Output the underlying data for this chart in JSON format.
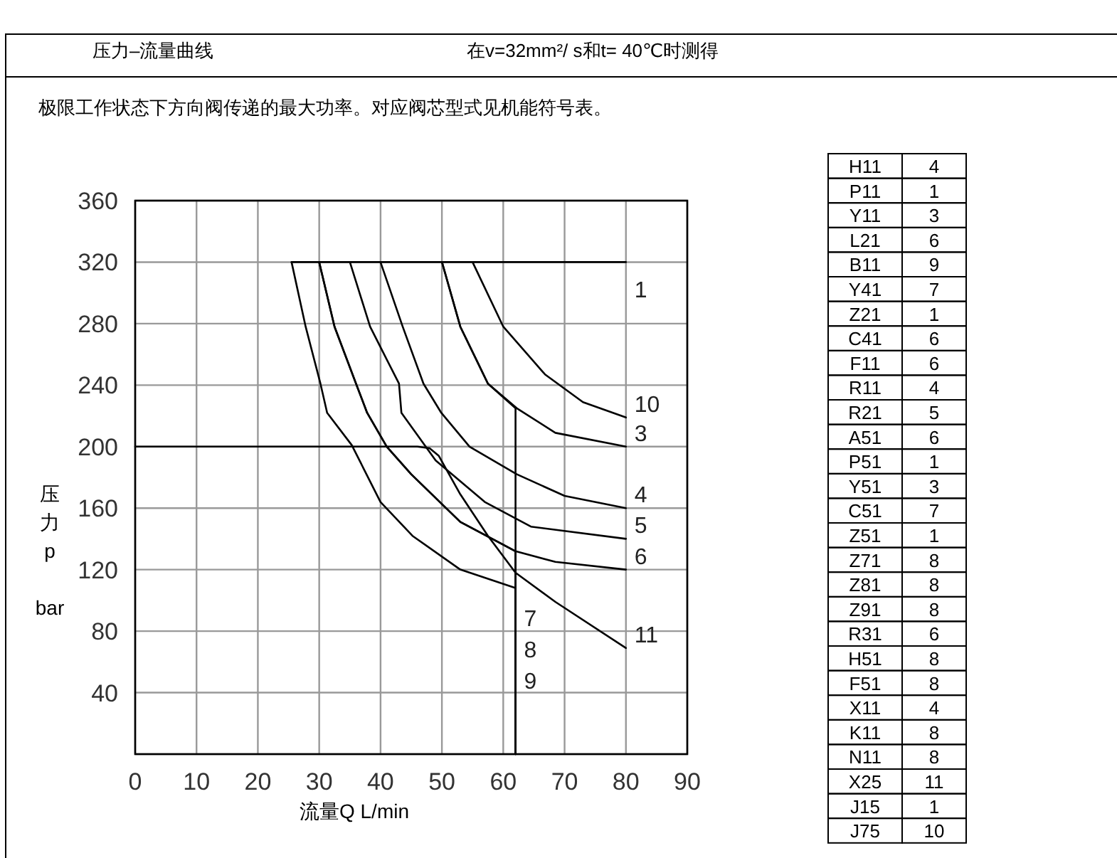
{
  "chart_data": [
    {
      "type": "line",
      "title": "压力–流量曲线",
      "subtitle": "在v=32mm²/ s和t= 40℃时测得",
      "annotations": [
        "极限工作状态下方向阀传递的最大功率。对应阀芯型式见机能符号表。"
      ],
      "xlabel": "流量Q  L/min",
      "ylabel": "压力\np\n\nbar",
      "xlim": [
        0,
        90
      ],
      "xticks": [
        0,
        10,
        20,
        30,
        40,
        50,
        60,
        70,
        80,
        90
      ],
      "ylim": [
        0,
        360
      ],
      "yticks": [
        {
          "value": 0,
          "label": null
        },
        40,
        80,
        120,
        160,
        200,
        240,
        280,
        320,
        360
      ],
      "grid": true,
      "marker": "none",
      "line_style": "solid",
      "series": [
        {
          "name": "1",
          "color": "#000000",
          "x": [
            25.5,
            80
          ],
          "values": [
            320,
            320
          ]
        },
        {
          "name": "3",
          "color": "#000000",
          "x": [
            50,
            53,
            57.5,
            62.2,
            68.5,
            80
          ],
          "values": [
            320,
            278,
            241,
            225,
            209,
            200
          ]
        },
        {
          "name": "4",
          "color": "#000000",
          "x": [
            40,
            43.6,
            47,
            49.9,
            54.5,
            62.2,
            70,
            80
          ],
          "values": [
            320,
            278,
            241,
            222,
            200,
            182,
            168,
            160
          ]
        },
        {
          "name": "5",
          "color": "#000000",
          "x": [
            35,
            38.3,
            43,
            43.4,
            49,
            57,
            64.5,
            80
          ],
          "values": [
            320,
            278,
            241,
            222,
            191,
            164,
            148,
            140
          ]
        },
        {
          "name": "6",
          "color": "#000000",
          "x": [
            30,
            32.5,
            36,
            37.8,
            41,
            45,
            53,
            62,
            68.5,
            80
          ],
          "values": [
            320,
            278,
            241,
            222,
            200,
            182,
            151,
            132,
            125,
            120
          ]
        },
        {
          "name": "7",
          "color": "#000000",
          "x": [
            30,
            32.5,
            36,
            37.8,
            41,
            45,
            53,
            62,
            62
          ],
          "values": [
            320,
            278,
            241,
            222,
            200,
            182,
            151,
            132,
            0
          ]
        },
        {
          "name": "8",
          "color": "#000000",
          "x": [
            25.5,
            27.8,
            30.2,
            31.3,
            35.3,
            40,
            45.2,
            53,
            62,
            62
          ],
          "values": [
            320,
            278,
            241,
            222,
            201,
            164,
            142,
            120,
            108,
            0
          ]
        },
        {
          "name": "9",
          "color": "#000000",
          "x": [
            50,
            53,
            57.5,
            62,
            62
          ],
          "values": [
            320,
            278,
            241,
            225,
            0
          ]
        },
        {
          "name": "10",
          "color": "#000000",
          "x": [
            55,
            60,
            66.8,
            73,
            80
          ],
          "values": [
            320,
            278,
            247,
            229,
            219
          ]
        },
        {
          "name": "11",
          "color": "#000000",
          "x": [
            0,
            46,
            48,
            49.5,
            53,
            57.5,
            62,
            68.5,
            80
          ],
          "values": [
            200,
            200,
            199,
            194,
            169,
            142,
            118,
            99,
            69
          ]
        }
      ]
    },
    {
      "type": "other",
      "annotations": [
        "H11",
        "4",
        "P11",
        "1",
        "Y11",
        "3",
        "L21",
        "6",
        "B11",
        "9",
        "Y41",
        "7",
        "Z21",
        "1",
        "C41",
        "6",
        "F11",
        "6",
        "R11",
        "4",
        "R21",
        "5",
        "A51",
        "6",
        "P51",
        "1",
        "Y51",
        "3",
        "C51",
        "7",
        "Z51",
        "1",
        "Z71",
        "8",
        "Z81",
        "8",
        "Z91",
        "8",
        "R31",
        "6",
        "H51",
        "8",
        "F51",
        "8",
        "X11",
        "4",
        "K11",
        "8",
        "N11",
        "8",
        "X25",
        "11",
        "J15",
        "1",
        "J75",
        "10"
      ]
    }
  ]
}
